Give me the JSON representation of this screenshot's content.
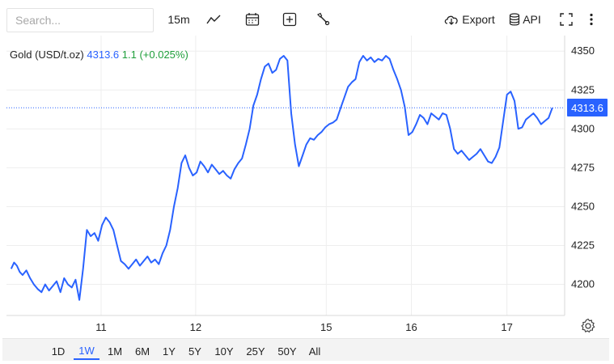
{
  "toolbar": {
    "search_placeholder": "Search...",
    "interval_label": "15m",
    "export_label": "Export",
    "api_label": "API"
  },
  "legend": {
    "symbol": "Gold (USD/t.oz)",
    "price": "4313.6",
    "change": "1.1 (+0.025%)"
  },
  "price_tag": "4313.6",
  "colors": {
    "line": "#2962ff",
    "change_positive": "#1e9e3a",
    "grid": "#eeeeee"
  },
  "range_buttons": [
    {
      "label": "1D",
      "active": false
    },
    {
      "label": "1W",
      "active": true
    },
    {
      "label": "1M",
      "active": false
    },
    {
      "label": "6M",
      "active": false
    },
    {
      "label": "1Y",
      "active": false
    },
    {
      "label": "5Y",
      "active": false
    },
    {
      "label": "10Y",
      "active": false
    },
    {
      "label": "25Y",
      "active": false
    },
    {
      "label": "50Y",
      "active": false
    },
    {
      "label": "All",
      "active": false
    }
  ],
  "chart_data": {
    "type": "line",
    "series": [
      {
        "values": [
          [
            0.0,
            4210
          ],
          [
            0.03,
            4214
          ],
          [
            0.06,
            4212
          ],
          [
            0.09,
            4208
          ],
          [
            0.12,
            4206
          ],
          [
            0.16,
            4209
          ],
          [
            0.2,
            4204
          ],
          [
            0.24,
            4200
          ],
          [
            0.28,
            4197
          ],
          [
            0.32,
            4195
          ],
          [
            0.36,
            4200
          ],
          [
            0.4,
            4196
          ],
          [
            0.44,
            4199
          ],
          [
            0.48,
            4202
          ],
          [
            0.52,
            4195
          ],
          [
            0.56,
            4204
          ],
          [
            0.6,
            4200
          ],
          [
            0.64,
            4198
          ],
          [
            0.68,
            4203
          ],
          [
            0.72,
            4190
          ],
          [
            0.76,
            4210
          ],
          [
            0.8,
            4235
          ],
          [
            0.84,
            4231
          ],
          [
            0.88,
            4233
          ],
          [
            0.92,
            4228
          ],
          [
            0.96,
            4238
          ],
          [
            1.0,
            4243
          ],
          [
            1.04,
            4240
          ],
          [
            1.08,
            4235
          ],
          [
            1.12,
            4225
          ],
          [
            1.16,
            4215
          ],
          [
            1.2,
            4213
          ],
          [
            1.24,
            4210
          ],
          [
            1.28,
            4213
          ],
          [
            1.32,
            4216
          ],
          [
            1.36,
            4212
          ],
          [
            1.4,
            4215
          ],
          [
            1.44,
            4218
          ],
          [
            1.48,
            4214
          ],
          [
            1.52,
            4216
          ],
          [
            1.56,
            4213
          ],
          [
            1.6,
            4220
          ],
          [
            1.64,
            4225
          ],
          [
            1.68,
            4235
          ],
          [
            1.72,
            4250
          ],
          [
            1.76,
            4262
          ],
          [
            1.8,
            4278
          ],
          [
            1.84,
            4283
          ],
          [
            1.88,
            4275
          ],
          [
            1.92,
            4270
          ],
          [
            1.96,
            4272
          ],
          [
            2.0,
            4279
          ],
          [
            2.04,
            4276
          ],
          [
            2.08,
            4272
          ],
          [
            2.12,
            4277
          ],
          [
            2.16,
            4274
          ],
          [
            2.2,
            4271
          ],
          [
            2.24,
            4273
          ],
          [
            2.28,
            4270
          ],
          [
            2.32,
            4268
          ],
          [
            2.36,
            4274
          ],
          [
            2.4,
            4278
          ],
          [
            2.44,
            4281
          ],
          [
            2.48,
            4290
          ],
          [
            2.52,
            4300
          ],
          [
            2.56,
            4315
          ],
          [
            2.6,
            4322
          ],
          [
            2.64,
            4332
          ],
          [
            2.68,
            4340
          ],
          [
            2.72,
            4342
          ],
          [
            2.76,
            4336
          ],
          [
            2.8,
            4338
          ],
          [
            2.84,
            4345
          ],
          [
            2.88,
            4347
          ],
          [
            2.92,
            4344
          ],
          [
            2.96,
            4310
          ],
          [
            3.0,
            4290
          ],
          [
            3.04,
            4276
          ],
          [
            3.08,
            4283
          ],
          [
            3.12,
            4290
          ],
          [
            3.16,
            4294
          ],
          [
            3.2,
            4293
          ],
          [
            3.24,
            4296
          ],
          [
            3.28,
            4298
          ],
          [
            3.32,
            4301
          ],
          [
            3.36,
            4303
          ],
          [
            3.4,
            4304
          ],
          [
            3.44,
            4306
          ],
          [
            3.48,
            4313
          ],
          [
            3.52,
            4320
          ],
          [
            3.56,
            4327
          ],
          [
            3.6,
            4330
          ],
          [
            3.64,
            4332
          ],
          [
            3.68,
            4343
          ],
          [
            3.72,
            4347
          ],
          [
            3.76,
            4344
          ],
          [
            3.8,
            4346
          ],
          [
            3.84,
            4343
          ],
          [
            3.88,
            4345
          ],
          [
            3.92,
            4344
          ],
          [
            3.96,
            4347
          ],
          [
            4.0,
            4345
          ],
          [
            4.04,
            4338
          ],
          [
            4.08,
            4332
          ],
          [
            4.12,
            4325
          ],
          [
            4.16,
            4314
          ],
          [
            4.2,
            4296
          ],
          [
            4.24,
            4298
          ],
          [
            4.28,
            4303
          ],
          [
            4.32,
            4309
          ],
          [
            4.36,
            4307
          ],
          [
            4.4,
            4303
          ],
          [
            4.44,
            4310
          ],
          [
            4.48,
            4308
          ],
          [
            4.52,
            4306
          ],
          [
            4.56,
            4310
          ],
          [
            4.6,
            4309
          ],
          [
            4.64,
            4300
          ],
          [
            4.68,
            4287
          ],
          [
            4.72,
            4284
          ],
          [
            4.76,
            4286
          ],
          [
            4.8,
            4283
          ],
          [
            4.84,
            4280
          ],
          [
            4.88,
            4282
          ],
          [
            4.92,
            4284
          ],
          [
            4.96,
            4287
          ],
          [
            5.0,
            4283
          ],
          [
            5.04,
            4279
          ],
          [
            5.08,
            4278
          ],
          [
            5.12,
            4282
          ],
          [
            5.16,
            4288
          ],
          [
            5.2,
            4305
          ],
          [
            5.24,
            4322
          ],
          [
            5.28,
            4324
          ],
          [
            5.32,
            4318
          ],
          [
            5.36,
            4300
          ],
          [
            5.4,
            4301
          ],
          [
            5.44,
            4306
          ],
          [
            5.48,
            4308
          ],
          [
            5.52,
            4310
          ],
          [
            5.56,
            4307
          ],
          [
            5.6,
            4303
          ],
          [
            5.64,
            4305
          ],
          [
            5.68,
            4307
          ],
          [
            5.72,
            4313.6
          ]
        ]
      }
    ],
    "x_ticks": [
      {
        "label": "11",
        "x": 0.95
      },
      {
        "label": "12",
        "x": 1.95
      },
      {
        "label": "15",
        "x": 3.33
      },
      {
        "label": "16",
        "x": 4.23
      },
      {
        "label": "17",
        "x": 5.24
      }
    ],
    "y_ticks": [
      4200,
      4225,
      4250,
      4275,
      4300,
      4325,
      4350
    ],
    "xlim": [
      -0.05,
      5.85
    ],
    "ylim": [
      4180,
      4360
    ],
    "last_value": 4313.6,
    "grid": true
  }
}
